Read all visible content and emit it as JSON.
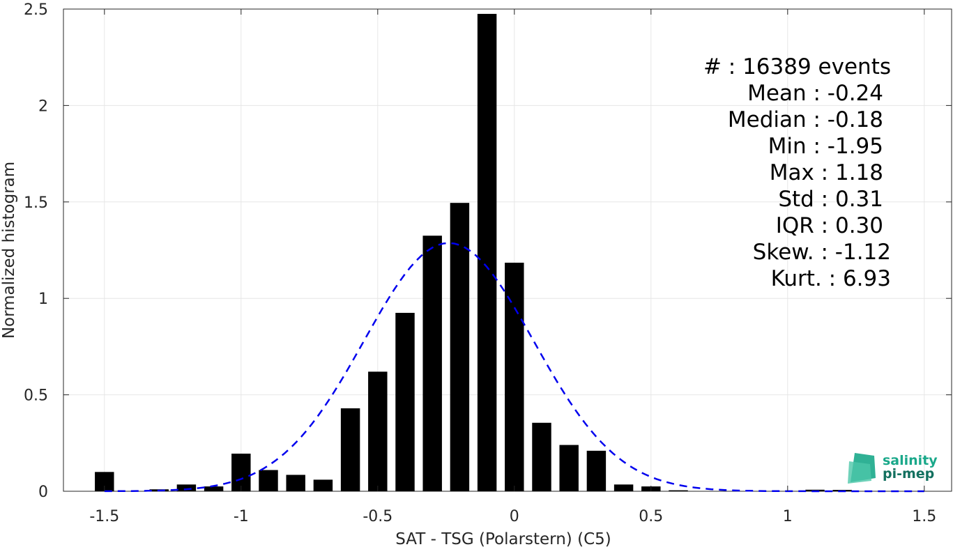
{
  "chart_data": {
    "type": "bar",
    "xlabel": "SAT - TSG (Polarstern) (C5)",
    "ylabel": "Normalized histogram",
    "xlim": [
      -1.65,
      1.6
    ],
    "ylim": [
      0,
      2.5
    ],
    "grid": true,
    "bin_width": 0.1,
    "x_ticks": [
      -1.5,
      -1,
      -0.5,
      0,
      0.5,
      1,
      1.5
    ],
    "x_tick_labels": [
      "-1.5",
      "-1",
      "-0.5",
      "0",
      "0.5",
      "1",
      "1.5"
    ],
    "y_ticks": [
      0,
      0.5,
      1,
      1.5,
      2,
      2.5
    ],
    "y_tick_labels": [
      "0",
      "0.5",
      "1",
      "1.5",
      "2",
      "2.5"
    ],
    "bars": {
      "x": [
        -1.5,
        -1.4,
        -1.3,
        -1.2,
        -1.1,
        -1.0,
        -0.9,
        -0.8,
        -0.7,
        -0.6,
        -0.5,
        -0.4,
        -0.3,
        -0.2,
        -0.1,
        0.0,
        0.1,
        0.2,
        0.3,
        0.4,
        0.5,
        0.6,
        0.7,
        0.8,
        0.9,
        1.0,
        1.1,
        1.2,
        1.3,
        1.4,
        1.5
      ],
      "values": [
        0.1,
        0.0,
        0.01,
        0.035,
        0.025,
        0.195,
        0.11,
        0.085,
        0.06,
        0.43,
        0.62,
        0.925,
        1.325,
        1.495,
        2.475,
        1.185,
        0.355,
        0.24,
        0.21,
        0.035,
        0.025,
        0.005,
        0.0,
        0.0,
        0.0,
        0.0,
        0.008,
        0.007,
        0.0,
        0.0,
        0.0
      ]
    },
    "fit": {
      "style": "dashed",
      "color": "#0000ee",
      "mean": -0.24,
      "std": 0.31,
      "x_range": [
        -1.5,
        1.5
      ]
    },
    "stats": [
      {
        "label": "#  : 16389 events"
      },
      {
        "label": "Mean : -0.24"
      },
      {
        "label": "Median : -0.18"
      },
      {
        "label": "Min : -1.95"
      },
      {
        "label": "Max : 1.18"
      },
      {
        "label": "Std : 0.31"
      },
      {
        "label": "IQR : 0.30"
      },
      {
        "label": "Skew. : -1.12"
      },
      {
        "label": "Kurt. : 6.93"
      }
    ]
  },
  "logo": {
    "line1": "salinity",
    "line2": "pi-mep",
    "color1": "#1aa88a",
    "color2": "#13705f"
  },
  "colors": {
    "bar": "#000000",
    "grid": "#e6e6e6",
    "axis": "#262626"
  }
}
